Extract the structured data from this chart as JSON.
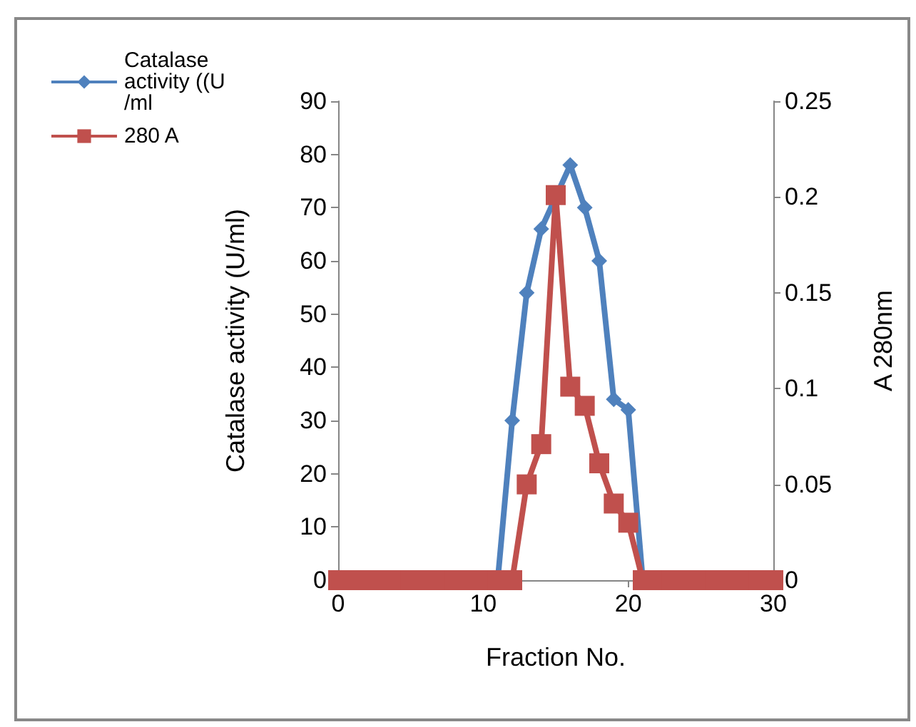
{
  "chart_data": {
    "type": "line",
    "xlabel": "Fraction No.",
    "ylabel": "Catalase activity (U/ml)",
    "y2label": "A 280nm",
    "xlim": [
      0,
      30
    ],
    "xticks": [
      0,
      10,
      20,
      30
    ],
    "ylim": [
      0,
      90
    ],
    "yticks": [
      0,
      10,
      20,
      30,
      40,
      50,
      60,
      70,
      80,
      90
    ],
    "y2lim": [
      0,
      0.25
    ],
    "y2ticks": [
      0,
      0.05,
      0.1,
      0.15,
      0.2,
      0.25
    ],
    "grid": false,
    "legend": "top left",
    "series": [
      {
        "name": "Catalase activity ((U/ml",
        "color": "#4f81bd",
        "marker": "diamond",
        "x": [
          11,
          12,
          13,
          14,
          16,
          17,
          18,
          19,
          20,
          21
        ],
        "values": [
          0,
          30,
          54,
          66,
          78,
          70,
          60,
          34,
          32,
          0
        ]
      },
      {
        "name": "280 A",
        "color": "#c0504d",
        "marker": "square",
        "axis": "y2",
        "x": [
          0,
          1,
          2,
          3,
          4,
          5,
          6,
          7,
          8,
          9,
          10,
          11,
          12,
          13,
          14,
          15,
          16,
          17,
          18,
          19,
          20,
          21,
          22,
          23,
          24,
          25,
          26,
          27,
          28,
          29,
          30
        ],
        "values": [
          0,
          0,
          0,
          0,
          0,
          0,
          0,
          0,
          0,
          0,
          0,
          0,
          0,
          0.05,
          0.071,
          0.201,
          0.101,
          0.091,
          0.061,
          0.04,
          0.03,
          0,
          0,
          0,
          0,
          0,
          0,
          0,
          0,
          0,
          0
        ]
      }
    ]
  }
}
